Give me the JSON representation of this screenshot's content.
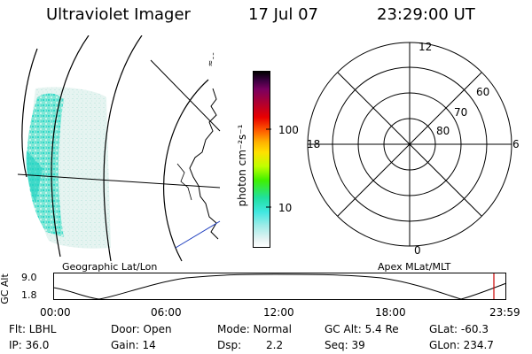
{
  "header": {
    "title": "Ultraviolet Imager",
    "date": "17 Jul 07",
    "time": "23:29:00 UT"
  },
  "colorbar": {
    "unit_label": "photon cm⁻²s⁻¹",
    "ticks": [
      "100",
      "10"
    ]
  },
  "geo_map": {
    "caption": "Geographic Lat/Lon",
    "limb_text": "¯¯≈"
  },
  "polar": {
    "caption": "Apex MLat/MLT",
    "mlt_labels": {
      "top": "12",
      "left": "18",
      "right": "6",
      "bottom": "0"
    },
    "mlat_labels": [
      "60",
      "70",
      "80"
    ]
  },
  "altitude_plot": {
    "ylabel": "GC Alt",
    "y_ticks": [
      "9.0",
      "1.8"
    ],
    "x_ticks": [
      "00:00",
      "06:00",
      "12:00",
      "18:00",
      "23:59"
    ],
    "marker_color": "#cc0000"
  },
  "info": {
    "flt": "Flt: LBHL",
    "door": "Door: Open",
    "mode": "Mode: Normal",
    "gc_alt": "GC Alt: 5.4 Re",
    "glat": "GLat: -60.3",
    "ip": "IP: 36.0",
    "gain": "Gain: 14",
    "dsp_label": "Dsp:",
    "dsp_value": "2.2",
    "seq": "Seq: 39",
    "glon": "GLon: 234.7"
  }
}
